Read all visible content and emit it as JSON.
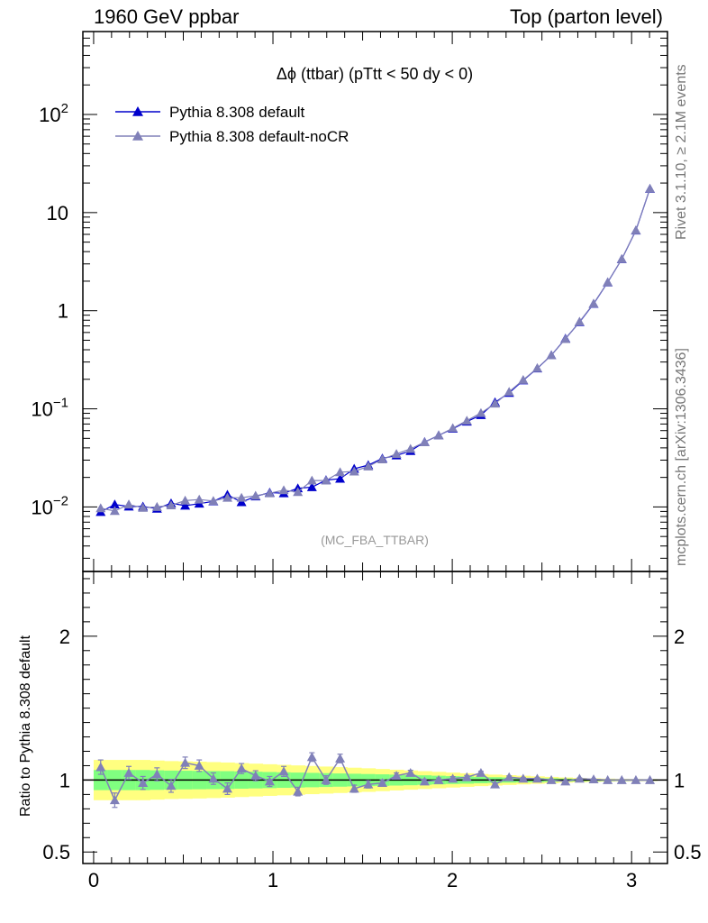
{
  "header": {
    "left": "1960 GeV ppbar",
    "right": "Top (parton level)"
  },
  "side_labels": {
    "rivet": "Rivet 3.1.10, ≥ 2.1M events",
    "mcplots": "mcplots.cern.ch [arXiv:1306.3436]"
  },
  "chart_data": [
    {
      "type": "line",
      "title": "Δϕ (ttbar) (pTtt < 50 dy < 0)",
      "analysis_label": "(MC_FBA_TTBAR)",
      "yscale": "log",
      "xlim": [
        -0.06,
        3.2
      ],
      "ylim": [
        0.0022,
        700
      ],
      "xticks": [
        0,
        1,
        2,
        3
      ],
      "yticks": [
        {
          "value": 0.01,
          "base": "10",
          "exp": "−2"
        },
        {
          "value": 0.1,
          "base": "10",
          "exp": "−1"
        },
        {
          "value": 1,
          "base": "1",
          "exp": ""
        },
        {
          "value": 10,
          "base": "10",
          "exp": ""
        },
        {
          "value": 100,
          "base": "10",
          "exp": "2"
        }
      ],
      "legend_position": "top-left",
      "x": [
        0.0393,
        0.1178,
        0.1963,
        0.2749,
        0.3534,
        0.432,
        0.5105,
        0.589,
        0.6676,
        0.7461,
        0.8247,
        0.9032,
        0.9817,
        1.0603,
        1.1388,
        1.2174,
        1.2959,
        1.3744,
        1.453,
        1.5315,
        1.6101,
        1.6886,
        1.7671,
        1.8457,
        1.9242,
        2.0028,
        2.0813,
        2.1598,
        2.2384,
        2.3169,
        2.3955,
        2.474,
        2.5525,
        2.6311,
        2.7096,
        2.7882,
        2.8667,
        2.9452,
        3.0238,
        3.1023
      ],
      "series": [
        {
          "name": "Pythia 8.308 default",
          "color": "#0000cc",
          "values": [
            0.0089,
            0.0106,
            0.0101,
            0.0101,
            0.0096,
            0.0109,
            0.0103,
            0.0108,
            0.0114,
            0.0133,
            0.0112,
            0.0128,
            0.014,
            0.0138,
            0.0155,
            0.0159,
            0.0188,
            0.0194,
            0.0245,
            0.0267,
            0.0312,
            0.0335,
            0.0372,
            0.0459,
            0.0537,
            0.0627,
            0.0742,
            0.0864,
            0.1166,
            0.1453,
            0.1951,
            0.2581,
            0.3515,
            0.5196,
            0.7647,
            1.1744,
            1.9435,
            3.3557,
            6.5617,
            17.4825
          ]
        },
        {
          "name": "Pythia 8.308 default-noCR",
          "color": "#8080b8",
          "values": [
            0.0097,
            0.0091,
            0.0106,
            0.0098,
            0.01,
            0.0104,
            0.0116,
            0.0119,
            0.0115,
            0.0124,
            0.0124,
            0.013,
            0.0138,
            0.0148,
            0.0142,
            0.0186,
            0.0186,
            0.0226,
            0.023,
            0.0259,
            0.0306,
            0.0347,
            0.0391,
            0.0457,
            0.0537,
            0.0636,
            0.0757,
            0.0906,
            0.113,
            0.149,
            0.197,
            0.26,
            0.352,
            0.515,
            0.773,
            1.181,
            1.95,
            3.362,
            6.595,
            17.53
          ]
        }
      ]
    },
    {
      "type": "line",
      "ylabel": "Ratio to Pythia 8.308 default",
      "xlim": [
        -0.06,
        3.2
      ],
      "ylim": [
        0.42,
        2.45
      ],
      "xticks": [
        0,
        1,
        2,
        3
      ],
      "yticks": [
        0.5,
        1,
        2
      ],
      "reference": 1,
      "x": [
        0.0393,
        0.1178,
        0.1963,
        0.2749,
        0.3534,
        0.432,
        0.5105,
        0.589,
        0.6676,
        0.7461,
        0.8247,
        0.9032,
        0.9817,
        1.0603,
        1.1388,
        1.2174,
        1.2959,
        1.3744,
        1.453,
        1.5315,
        1.6101,
        1.6886,
        1.7671,
        1.8457,
        1.9242,
        2.0028,
        2.0813,
        2.1598,
        2.2384,
        2.3169,
        2.3955,
        2.474,
        2.5525,
        2.6311,
        2.7096,
        2.7882,
        2.8667,
        2.9452,
        3.0238,
        3.1023
      ],
      "band_inner": [
        0.07,
        0.07,
        0.07,
        0.07,
        0.068,
        0.066,
        0.065,
        0.064,
        0.063,
        0.062,
        0.06,
        0.058,
        0.056,
        0.054,
        0.052,
        0.05,
        0.048,
        0.046,
        0.044,
        0.042,
        0.04,
        0.038,
        0.036,
        0.033,
        0.03,
        0.027,
        0.025,
        0.022,
        0.02,
        0.018,
        0.016,
        0.014,
        0.012,
        0.01,
        0.008,
        0.007,
        0.006,
        0.005,
        0.004,
        0.004
      ],
      "band_outer": [
        0.14,
        0.14,
        0.14,
        0.14,
        0.136,
        0.132,
        0.13,
        0.128,
        0.125,
        0.122,
        0.118,
        0.114,
        0.11,
        0.106,
        0.102,
        0.098,
        0.094,
        0.09,
        0.086,
        0.082,
        0.077,
        0.072,
        0.067,
        0.062,
        0.057,
        0.052,
        0.047,
        0.042,
        0.038,
        0.034,
        0.03,
        0.026,
        0.022,
        0.018,
        0.015,
        0.012,
        0.01,
        0.008,
        0.007,
        0.006
      ],
      "band_colors": {
        "inner": "#80ff80",
        "outer": "#ffff80"
      },
      "series": [
        {
          "name": "Pythia 8.308 default-noCR",
          "color": "#8080b8",
          "values": [
            1.09,
            0.86,
            1.05,
            0.98,
            1.04,
            0.96,
            1.12,
            1.1,
            1.01,
            0.94,
            1.08,
            1.03,
            0.99,
            1.06,
            0.92,
            1.16,
            1.0,
            1.15,
            0.94,
            0.97,
            0.98,
            1.03,
            1.05,
            0.99,
            1.0,
            1.01,
            1.02,
            1.05,
            0.97,
            1.02,
            1.01,
            1.01,
            1.0,
            0.99,
            1.01,
            1.005,
            1.0,
            1.0,
            1.0,
            1.0
          ],
          "errors": [
            0.05,
            0.05,
            0.045,
            0.045,
            0.045,
            0.045,
            0.04,
            0.04,
            0.04,
            0.04,
            0.035,
            0.035,
            0.035,
            0.035,
            0.03,
            0.03,
            0.03,
            0.03,
            0.025,
            0.025,
            0.022,
            0.02,
            0.018,
            0.016,
            0.015,
            0.014,
            0.012,
            0.011,
            0.01,
            0.009,
            0.008,
            0.007,
            0.006,
            0.005,
            0.005,
            0.004,
            0.004,
            0.003,
            0.003,
            0.003
          ]
        }
      ]
    }
  ]
}
